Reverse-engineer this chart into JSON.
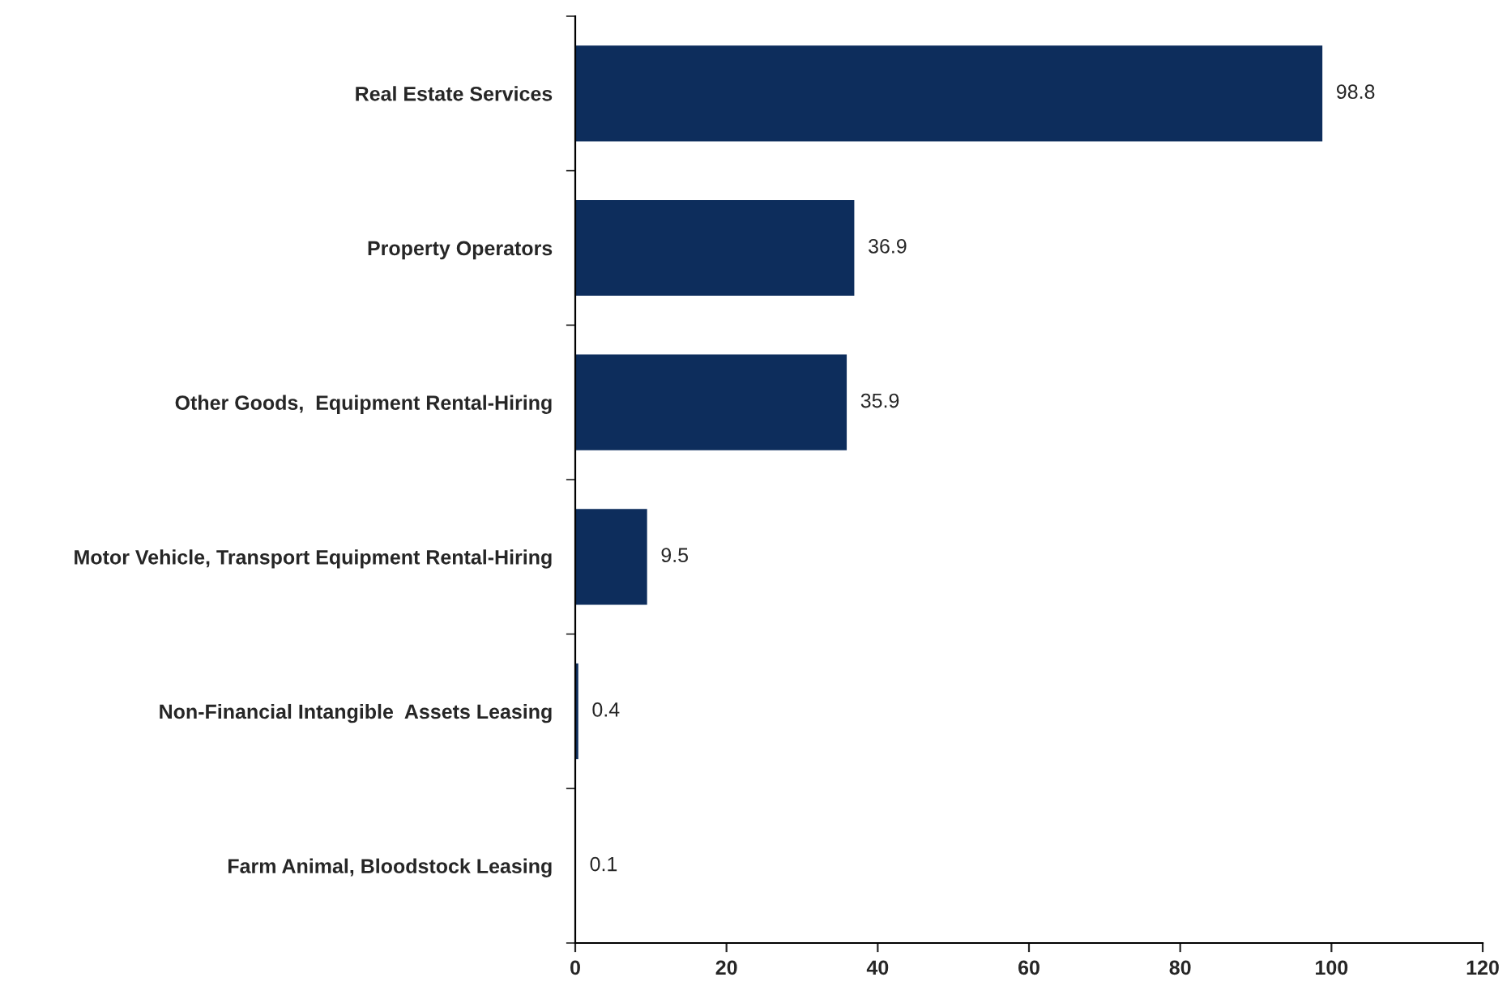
{
  "chart_data": {
    "type": "bar",
    "orientation": "horizontal",
    "categories": [
      "Real Estate Services",
      "Property Operators",
      "Other Goods,  Equipment Rental-Hiring",
      "Motor Vehicle, Transport Equipment Rental-Hiring",
      "Non-Financial Intangible  Assets Leasing",
      "Farm Animal, Bloodstock Leasing"
    ],
    "values": [
      98.8,
      36.9,
      35.9,
      9.5,
      0.4,
      0.1
    ],
    "color": "#0d2d5c",
    "xlim": [
      0,
      120
    ],
    "xticks": [
      0,
      20,
      40,
      60,
      80,
      100,
      120
    ],
    "data_labels": true,
    "grid": false,
    "legend": false
  }
}
